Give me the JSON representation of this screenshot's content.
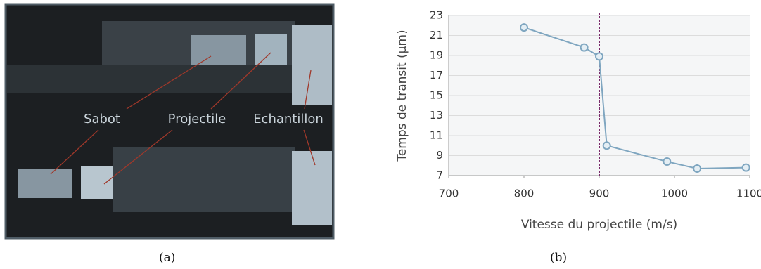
{
  "figure_a": {
    "labels": [
      "Sabot",
      "Projectile",
      "Echantillon"
    ],
    "caption": "(a)"
  },
  "figure_b": {
    "caption": "(b)"
  },
  "chart_data": {
    "type": "line",
    "x_label": "Vitesse du projectile (m/s)",
    "y_label": "Temps de transit (µm)",
    "x": [
      800,
      880,
      900,
      910,
      990,
      1030,
      1095
    ],
    "series": [
      {
        "color": "#7fa6c0",
        "values": [
          21.8,
          19.8,
          18.9,
          10.0,
          8.4,
          7.7,
          7.8
        ]
      }
    ],
    "xlim": [
      700,
      1100
    ],
    "xticks": [
      700,
      800,
      900,
      1000,
      1100
    ],
    "ylim": [
      7,
      23
    ],
    "yticks": [
      7,
      9,
      11,
      13,
      15,
      17,
      19,
      21,
      23
    ],
    "grid": true,
    "reference_line": {
      "x": 900,
      "color": "#7a2a6a"
    }
  }
}
